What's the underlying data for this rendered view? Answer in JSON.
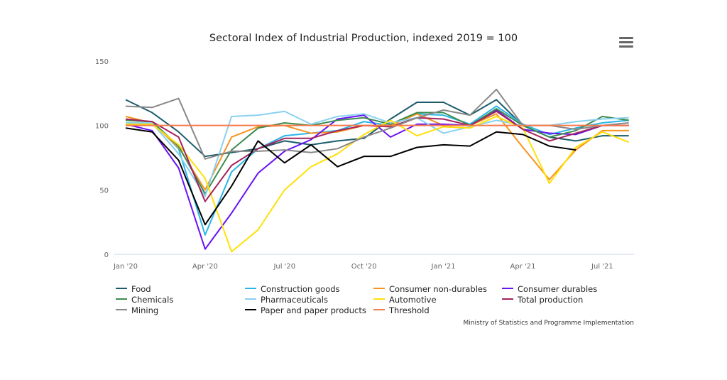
{
  "chart_data": {
    "type": "line",
    "title": "Sectoral Index of Industrial Production, indexed 2019 = 100",
    "xlabel": "",
    "ylabel": "",
    "x": [
      "Jan '20",
      "Feb '20",
      "Mar '20",
      "Apr '20",
      "May '20",
      "Jun '20",
      "Jul '20",
      "Aug '20",
      "Sep '20",
      "Oct '20",
      "Nov '20",
      "Dec '20",
      "Jan '21",
      "Feb '21",
      "Mar '21",
      "Apr '21",
      "May '21",
      "Jun '21",
      "Jul '21",
      "Aug '21"
    ],
    "x_tick_labels": [
      "Jan '20",
      "Apr '20",
      "Jul '20",
      "Oct '20",
      "Jan '21",
      "Apr '21",
      "Jul '21"
    ],
    "y_ticks": [
      0,
      50,
      100,
      150
    ],
    "ylim": [
      0,
      150
    ],
    "grid": false,
    "legend_position": "bottom",
    "series": [
      {
        "name": "Food",
        "color": "#1b5b6b",
        "values": [
          120,
          110,
          95,
          76,
          79,
          82,
          88,
          85,
          88,
          90,
          105,
          118,
          118,
          108,
          120,
          100,
          91,
          88,
          92,
          92
        ]
      },
      {
        "name": "Construction goods",
        "color": "#2bb5e8",
        "values": [
          104,
          103,
          82,
          15,
          64,
          82,
          92,
          94,
          96,
          103,
          100,
          109,
          108,
          101,
          115,
          101,
          93,
          98,
          102,
          104
        ]
      },
      {
        "name": "Consumer non-durables",
        "color": "#f7931e",
        "values": [
          107,
          102,
          83,
          50,
          91,
          99,
          100,
          94,
          95,
          100,
          100,
          109,
          100,
          100,
          109,
          83,
          58,
          81,
          96,
          96
        ]
      },
      {
        "name": "Consumer durables",
        "color": "#6a12f5",
        "values": [
          101,
          96,
          67,
          4,
          32,
          63,
          80,
          89,
          105,
          108,
          91,
          101,
          101,
          100,
          112,
          97,
          94,
          93,
          100,
          100
        ]
      },
      {
        "name": "Chemicals",
        "color": "#3d8b4f",
        "values": [
          104,
          103,
          84,
          47,
          81,
          98,
          102,
          100,
          104,
          106,
          101,
          110,
          110,
          100,
          113,
          100,
          91,
          96,
          107,
          104
        ]
      },
      {
        "name": "Pharmaceuticals",
        "color": "#88d1ef",
        "values": [
          102,
          102,
          78,
          45,
          107,
          108,
          111,
          101,
          107,
          109,
          102,
          106,
          94,
          99,
          104,
          100,
          100,
          103,
          105,
          106
        ]
      },
      {
        "name": "Automotive",
        "color": "#ffe00a",
        "values": [
          101,
          101,
          85,
          59,
          2,
          19,
          50,
          68,
          78,
          93,
          104,
          92,
          99,
          98,
          107,
          98,
          55,
          83,
          95,
          87
        ]
      },
      {
        "name": "Total production",
        "color": "#a3235c",
        "values": [
          105,
          103,
          91,
          41,
          69,
          82,
          90,
          90,
          96,
          100,
          99,
          106,
          105,
          100,
          111,
          97,
          88,
          94,
          100,
          100
        ]
      },
      {
        "name": "Mining",
        "color": "#888888",
        "values": [
          115,
          114,
          121,
          74,
          80,
          80,
          81,
          79,
          82,
          91,
          98,
          106,
          112,
          108,
          128,
          100,
          100,
          97,
          100,
          102
        ]
      },
      {
        "name": "Paper and paper products",
        "color": "#000000",
        "values": [
          98,
          95,
          73,
          23,
          53,
          88,
          71,
          85,
          68,
          76,
          76,
          83,
          85,
          84,
          95,
          93,
          84,
          81,
          null,
          null
        ]
      },
      {
        "name": "Threshold",
        "color": "#f77a4a",
        "values": [
          100,
          100,
          100,
          100,
          100,
          100,
          100,
          100,
          100,
          100,
          100,
          100,
          100,
          100,
          100,
          100,
          100,
          100,
          100,
          100
        ]
      }
    ]
  },
  "credits": "Ministry of Statistics and Programme Implementation",
  "menu_icon": "hamburger-menu-icon"
}
